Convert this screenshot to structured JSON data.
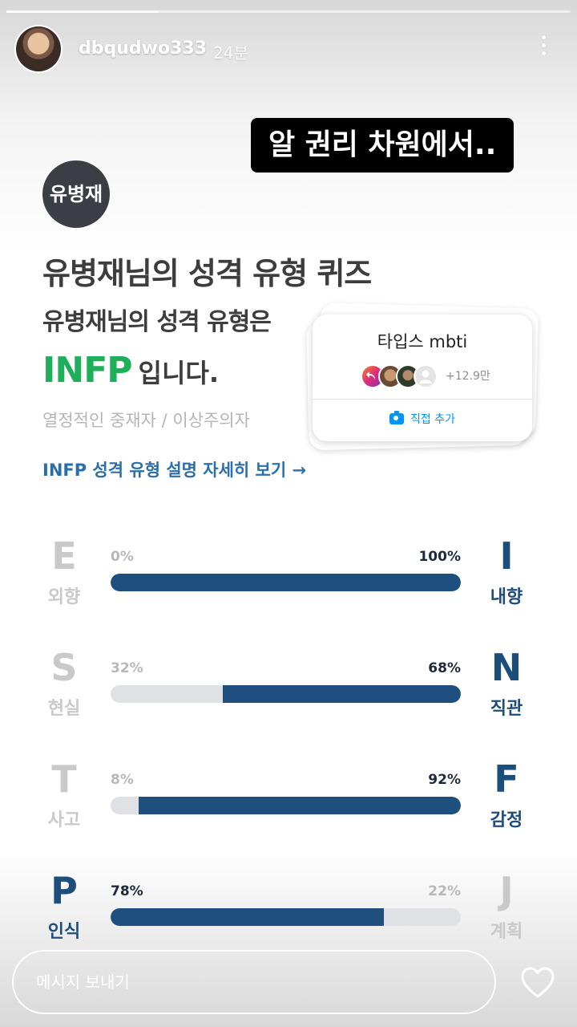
{
  "story": {
    "progress_fraction": 0.27,
    "username": "dbqudwo333",
    "time": "24분"
  },
  "caption": "알 권리 차원에서..",
  "quiz": {
    "name_circle": "유병재",
    "title": "유병재님의 성격 유형 퀴즈",
    "subtitle": "유병재님의 성격 유형은",
    "type_code": "INFP",
    "type_suffix": "입니다.",
    "description": "열정적인 중재자 / 이상주의자",
    "detail_link": "INFP 성격 유형 설명 자세히 보기",
    "detail_arrow": "→",
    "traits": [
      {
        "left_letter": "E",
        "left_word": "외향",
        "left_pct": "0%",
        "right_letter": "I",
        "right_word": "내향",
        "right_pct": "100%",
        "dominant": "right",
        "fill_start": 0,
        "fill_end": 1.0
      },
      {
        "left_letter": "S",
        "left_word": "현실",
        "left_pct": "32%",
        "right_letter": "N",
        "right_word": "직관",
        "right_pct": "68%",
        "dominant": "right",
        "fill_start": 0.32,
        "fill_end": 1.0
      },
      {
        "left_letter": "T",
        "left_word": "사고",
        "left_pct": "8%",
        "right_letter": "F",
        "right_word": "감정",
        "right_pct": "92%",
        "dominant": "right",
        "fill_start": 0.08,
        "fill_end": 1.0
      },
      {
        "left_letter": "P",
        "left_word": "인식",
        "left_pct": "78%",
        "right_letter": "J",
        "right_word": "계획",
        "right_pct": "22%",
        "dominant": "left",
        "fill_start": 0,
        "fill_end": 0.78
      }
    ]
  },
  "sticker": {
    "title": "타입스 mbti",
    "participant_count": "+12.9만",
    "action_label": "직접 추가"
  },
  "reply": {
    "placeholder": "메시지 보내기"
  },
  "colors": {
    "accent_green": "#1fae5a",
    "bar_navy": "#1f4f7e",
    "link_blue": "#2b6fa8",
    "sticker_blue": "#0095f6"
  }
}
